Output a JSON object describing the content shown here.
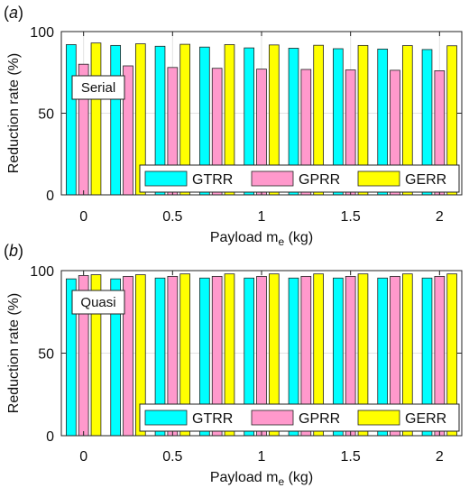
{
  "chart_data": [
    {
      "panel": "a",
      "type": "bar",
      "label_box": "Serial",
      "xlabel_main": "Payload m",
      "xlabel_sub": "e",
      "xlabel_unit": " (kg)",
      "ylabel": "Reduction rate (%)",
      "x": [
        0,
        0.25,
        0.5,
        0.75,
        1,
        1.25,
        1.5,
        1.75,
        2
      ],
      "xticks": [
        0,
        0.5,
        1,
        1.5,
        2
      ],
      "xtick_labels": [
        "0",
        "0.5",
        "1",
        "1.5",
        "2"
      ],
      "xlim": [
        -0.125,
        2.125
      ],
      "ylim": [
        0,
        100
      ],
      "yticks": [
        0,
        50,
        100
      ],
      "ytick_labels": [
        "0",
        "50",
        "100"
      ],
      "grid": true,
      "legend_placement": "bottom-right",
      "series": [
        {
          "name": "GTRR",
          "values": [
            92,
            91.5,
            91,
            90.5,
            90,
            89.8,
            89.5,
            89.3,
            89
          ]
        },
        {
          "name": "GPRR",
          "values": [
            80,
            79,
            78,
            77.5,
            77,
            76.8,
            76.5,
            76.3,
            76
          ]
        },
        {
          "name": "GERR",
          "values": [
            93,
            92.5,
            92.2,
            92,
            91.8,
            91.6,
            91.5,
            91.4,
            91.3
          ]
        }
      ]
    },
    {
      "panel": "b",
      "type": "bar",
      "label_box": "Quasi",
      "xlabel_main": "Payload m",
      "xlabel_sub": "e",
      "xlabel_unit": " (kg)",
      "ylabel": "Reduction rate (%)",
      "x": [
        0,
        0.25,
        0.5,
        0.75,
        1,
        1.25,
        1.5,
        1.75,
        2
      ],
      "xticks": [
        0,
        0.5,
        1,
        1.5,
        2
      ],
      "xtick_labels": [
        "0",
        "0.5",
        "1",
        "1.5",
        "2"
      ],
      "xlim": [
        -0.125,
        2.125
      ],
      "ylim": [
        0,
        100
      ],
      "yticks": [
        0,
        50,
        100
      ],
      "ytick_labels": [
        "0",
        "50",
        "100"
      ],
      "grid": true,
      "legend_placement": "bottom-right",
      "series": [
        {
          "name": "GTRR",
          "values": [
            95,
            95,
            95.5,
            95.5,
            95.5,
            95.5,
            95.5,
            95.5,
            95.5
          ]
        },
        {
          "name": "GPRR",
          "values": [
            97,
            96.5,
            96.5,
            96.5,
            96.5,
            96.5,
            96.5,
            96.5,
            96.5
          ]
        },
        {
          "name": "GERR",
          "values": [
            97.5,
            97.5,
            98,
            98,
            98,
            98,
            98,
            98,
            98
          ]
        }
      ]
    }
  ],
  "colors": {
    "GTRR": "#00FFFF",
    "GPRR": "#FF99CC",
    "GERR": "#FFFF00",
    "grid": "#e3e3e3",
    "axis": "#222222"
  }
}
